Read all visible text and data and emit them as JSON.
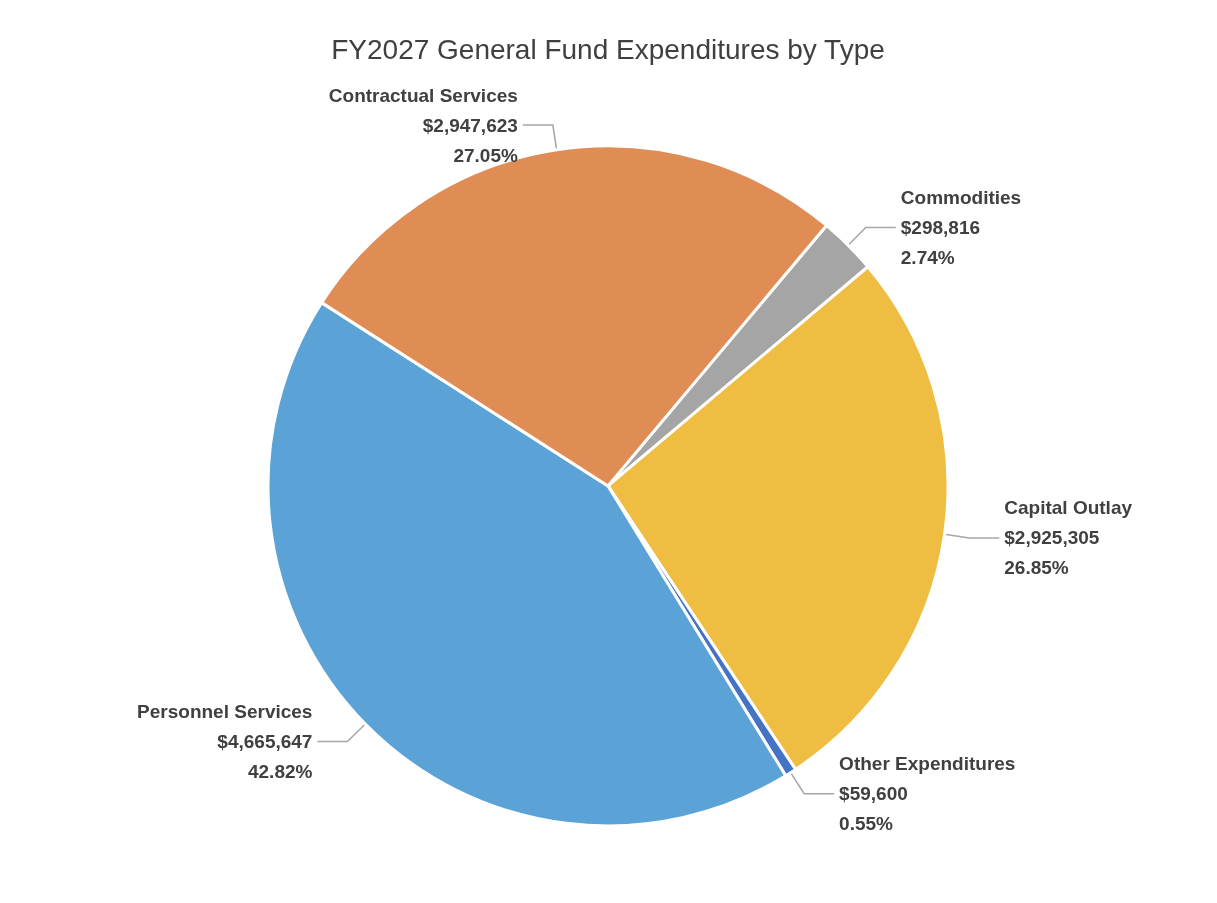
{
  "chart_data": {
    "type": "pie",
    "title": "FY2027 General Fund Expenditures by Type",
    "categories": [
      "Commodities",
      "Capital Outlay",
      "Other Expenditures",
      "Personnel Services",
      "Contractual Services"
    ],
    "values": [
      298816,
      2925305,
      59600,
      4665647,
      2947623
    ],
    "colors": [
      "#a5a5a5",
      "#f0bd43",
      "#4472c4",
      "#5ba3d6",
      "#e08c55"
    ],
    "value_labels": [
      "$298,816\n2.74%",
      "$2,925,305\n26.85%",
      "$59,600\n0.55%",
      "$4,665,647\n42.82%",
      "$2,947,623\n27.05%"
    ]
  }
}
